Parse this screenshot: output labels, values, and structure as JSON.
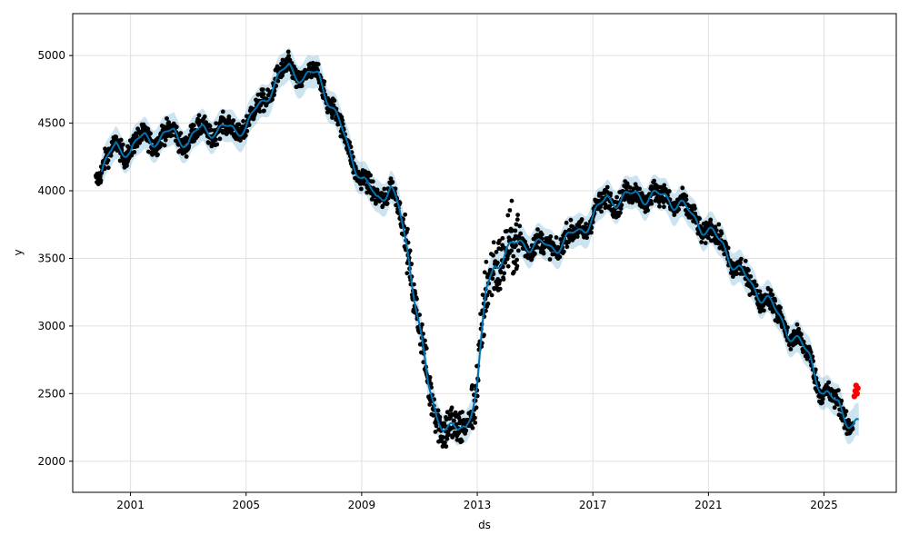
{
  "chart_data": {
    "type": "scatter",
    "title": "",
    "xlabel": "ds",
    "ylabel": "y",
    "xlim": [
      1999.0,
      2027.5
    ],
    "ylim": [
      1770,
      5310
    ],
    "grid": true,
    "x_ticks": [
      2001,
      2005,
      2009,
      2013,
      2017,
      2021,
      2025
    ],
    "x_tick_labels": [
      "2001",
      "2005",
      "2009",
      "2013",
      "2017",
      "2021",
      "2025"
    ],
    "y_ticks": [
      2000,
      2500,
      3000,
      3500,
      4000,
      4500,
      5000
    ],
    "y_tick_labels": [
      "2000",
      "2500",
      "3000",
      "3500",
      "4000",
      "4500",
      "5000"
    ],
    "colors": {
      "observed": "#000000",
      "forecast_line": "#0072B2",
      "uncertainty_band": "#0072B2",
      "future_observed": "#ff0000",
      "grid": "#e0e0e0"
    },
    "forecast": {
      "x": [
        2000.0,
        2000.5,
        2001.0,
        2001.5,
        2002.0,
        2002.5,
        2003.0,
        2003.5,
        2004.0,
        2004.5,
        2005.0,
        2005.5,
        2006.0,
        2006.5,
        2007.0,
        2007.5,
        2008.0,
        2008.5,
        2009.0,
        2009.5,
        2010.0,
        2010.3,
        2010.6,
        2011.0,
        2011.3,
        2011.6,
        2012.0,
        2012.3,
        2012.6,
        2013.0,
        2013.3,
        2013.6,
        2014.0,
        2014.5,
        2015.0,
        2015.5,
        2016.0,
        2016.5,
        2017.0,
        2017.5,
        2018.0,
        2018.5,
        2019.0,
        2019.5,
        2020.0,
        2020.5,
        2021.0,
        2021.5,
        2022.0,
        2022.5,
        2023.0,
        2023.5,
        2024.0,
        2024.5,
        2025.0,
        2025.5,
        2026.0,
        2026.2
      ],
      "yhat": [
        4130,
        4350,
        4280,
        4420,
        4360,
        4450,
        4340,
        4480,
        4430,
        4470,
        4460,
        4650,
        4790,
        4930,
        4820,
        4870,
        4600,
        4350,
        4080,
        3950,
        4020,
        3850,
        3550,
        3000,
        2550,
        2330,
        2250,
        2210,
        2260,
        2550,
        3250,
        3450,
        3550,
        3620,
        3600,
        3580,
        3620,
        3700,
        3800,
        3950,
        3930,
        3980,
        3950,
        3960,
        3900,
        3800,
        3700,
        3600,
        3420,
        3300,
        3200,
        3050,
        2900,
        2780,
        2480,
        2430,
        2250,
        2270
      ],
      "band_halfwidth": 120
    },
    "observed_range": [
      1999.8,
      2026.0
    ],
    "future_observed": {
      "x": [
        2026.05,
        2026.08,
        2026.11,
        2026.14,
        2026.17
      ],
      "y": [
        2480,
        2520,
        2560,
        2500,
        2540
      ]
    }
  }
}
